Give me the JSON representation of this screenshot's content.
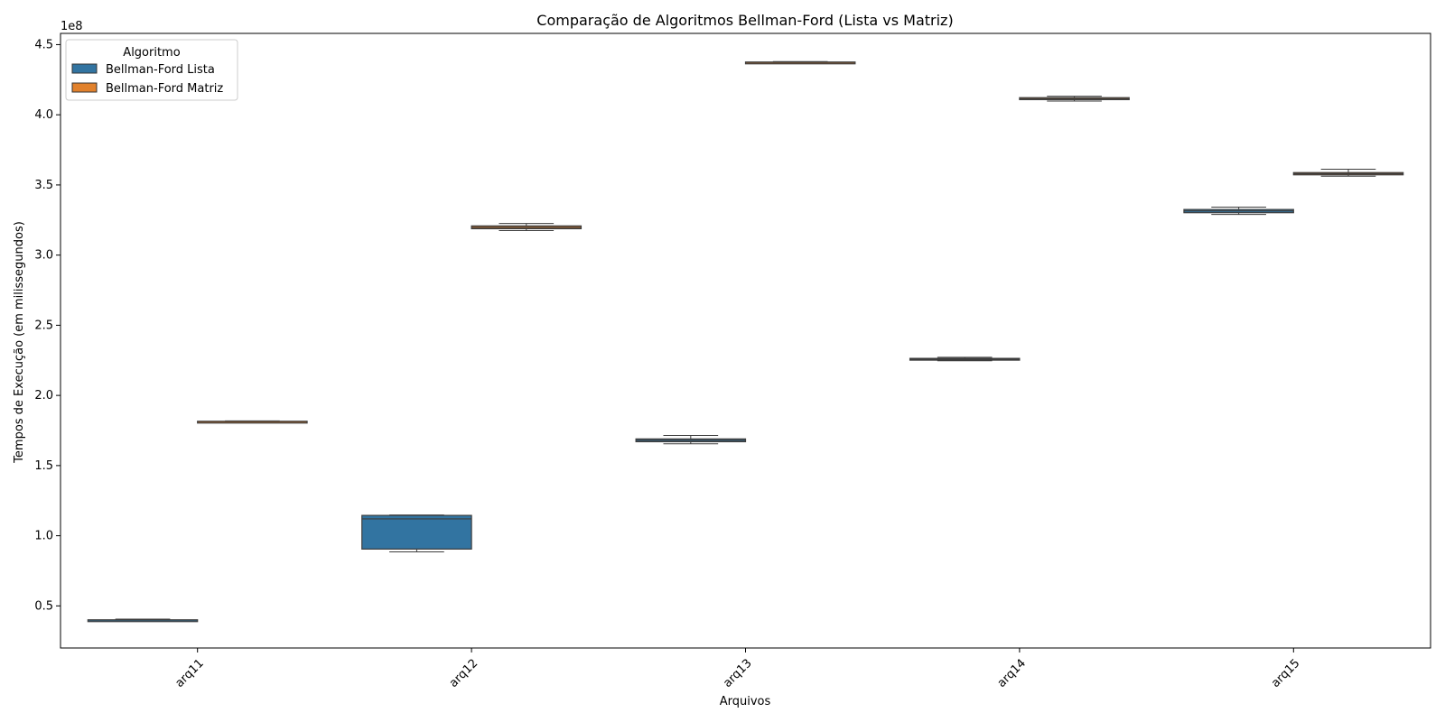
{
  "chart_data": {
    "type": "box",
    "title": "Comparação de Algoritmos Bellman-Ford (Lista vs Matriz)",
    "xlabel": "Arquivos",
    "ylabel": "Tempos de Execução (em milissegundos)",
    "y_scale_label": "1e8",
    "y_scale_factor": 100000000,
    "ylim": [
      0.2,
      4.58
    ],
    "yticks": [
      0.5,
      1.0,
      1.5,
      2.0,
      2.5,
      3.0,
      3.5,
      4.0,
      4.5
    ],
    "ytick_labels": [
      "0.5",
      "1.0",
      "1.5",
      "2.0",
      "2.5",
      "3.0",
      "3.5",
      "4.0",
      "4.5"
    ],
    "categories": [
      "arq11",
      "arq12",
      "arq13",
      "arq14",
      "arq15"
    ],
    "tick_rotation_deg": -45,
    "legend": {
      "title": "Algoritmo",
      "position": "top-left"
    },
    "series": [
      {
        "name": "Bellman-Ford Lista",
        "color": "#3274a1",
        "boxes": [
          {
            "whisker_low": 0.395,
            "q1": 0.397,
            "median": 0.399,
            "q3": 0.401,
            "whisker_high": 0.406
          },
          {
            "whisker_low": 0.885,
            "q1": 0.905,
            "median": 1.12,
            "q3": 1.145,
            "whisker_high": 1.148
          },
          {
            "whisker_low": 1.655,
            "q1": 1.67,
            "median": 1.68,
            "q3": 1.69,
            "whisker_high": 1.715
          },
          {
            "whisker_low": 2.247,
            "q1": 2.253,
            "median": 2.259,
            "q3": 2.264,
            "whisker_high": 2.272
          },
          {
            "whisker_low": 3.29,
            "q1": 3.302,
            "median": 3.315,
            "q3": 3.325,
            "whisker_high": 3.342
          }
        ]
      },
      {
        "name": "Bellman-Ford Matriz",
        "color": "#e1812c",
        "boxes": [
          {
            "whisker_low": 1.81,
            "q1": 1.812,
            "median": 1.814,
            "q3": 1.816,
            "whisker_high": 1.818
          },
          {
            "whisker_low": 3.175,
            "q1": 3.188,
            "median": 3.197,
            "q3": 3.208,
            "whisker_high": 3.225
          },
          {
            "whisker_low": 4.368,
            "q1": 4.371,
            "median": 4.373,
            "q3": 4.376,
            "whisker_high": 4.379
          },
          {
            "whisker_low": 4.098,
            "q1": 4.108,
            "median": 4.115,
            "q3": 4.122,
            "whisker_high": 4.132
          },
          {
            "whisker_low": 3.562,
            "q1": 3.572,
            "median": 3.58,
            "q3": 3.588,
            "whisker_high": 3.612
          }
        ]
      }
    ]
  }
}
